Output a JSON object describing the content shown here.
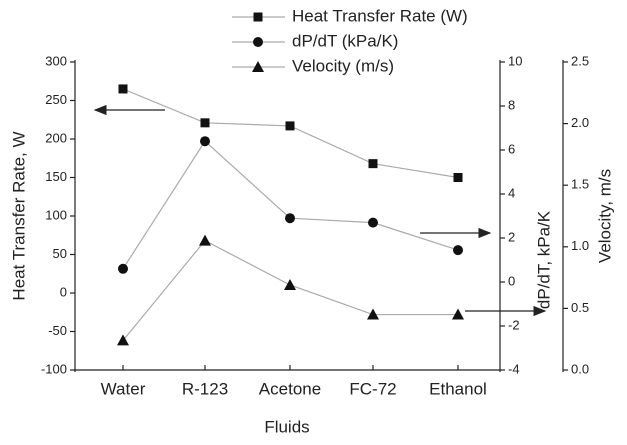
{
  "chart_data": {
    "type": "line",
    "x_label": "Fluids",
    "y_label": "Heat Transfer Rate, W",
    "y2_label": "dP/dT, kPa/K",
    "y3_label": "Velocity, m/s",
    "categories": [
      "Water",
      "R-123",
      "Acetone",
      "FC-72",
      "Ethanol"
    ],
    "series": [
      {
        "name": "Heat Transfer Rate (W)",
        "marker": "square",
        "color": "#111111",
        "axis": "y",
        "values": [
          265,
          221,
          217,
          168,
          150
        ]
      },
      {
        "name": "dP/dT (kPa/K)",
        "marker": "circle",
        "color": "#111111",
        "axis": "y2",
        "values": [
          0.6,
          6.4,
          2.9,
          2.7,
          1.45
        ]
      },
      {
        "name": "Velocity (m/s)",
        "marker": "triangle",
        "color": "#111111",
        "axis": "y3",
        "values": [
          0.24,
          1.05,
          0.69,
          0.45,
          0.45
        ]
      }
    ],
    "ylim": [
      -100,
      300
    ],
    "yticks": [
      -100,
      -50,
      0,
      50,
      100,
      150,
      200,
      250,
      300
    ],
    "y2lim": [
      -4,
      10
    ],
    "y2ticks": [
      -4,
      -2,
      0,
      2,
      4,
      6,
      8,
      10
    ],
    "y3lim": [
      0,
      2.5
    ],
    "y3ticks": [
      {
        "value": 0,
        "label": "0.0"
      },
      0.5,
      {
        "value": 1,
        "label": "1.0"
      },
      1.5,
      {
        "value": 2,
        "label": "2.0"
      },
      2.5
    ],
    "grid": false
  }
}
